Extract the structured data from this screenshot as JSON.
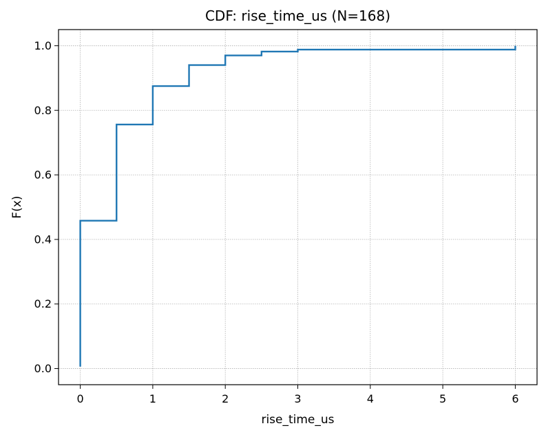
{
  "chart_data": {
    "type": "line",
    "drawstyle": "steps-post",
    "title": "CDF: rise_time_us  (N=168)",
    "xlabel": "rise_time_us",
    "ylabel": "F(x)",
    "xlim": [
      -0.3,
      6.3
    ],
    "ylim": [
      -0.05,
      1.05
    ],
    "xticks": [
      0,
      1,
      2,
      3,
      4,
      5,
      6
    ],
    "xtick_labels": [
      "0",
      "1",
      "2",
      "3",
      "4",
      "5",
      "6"
    ],
    "yticks": [
      0.0,
      0.2,
      0.4,
      0.6,
      0.8,
      1.0
    ],
    "ytick_labels": [
      "0.0",
      "0.2",
      "0.4",
      "0.6",
      "0.8",
      "1.0"
    ],
    "grid": true,
    "series": [
      {
        "color": "#1f77b4",
        "x": [
          0,
          0,
          0.5,
          1.0,
          1.5,
          2.0,
          2.5,
          3.0,
          6.0
        ],
        "y": [
          0.006,
          0.458,
          0.756,
          0.875,
          0.94,
          0.97,
          0.982,
          0.988,
          1.0
        ]
      }
    ]
  }
}
